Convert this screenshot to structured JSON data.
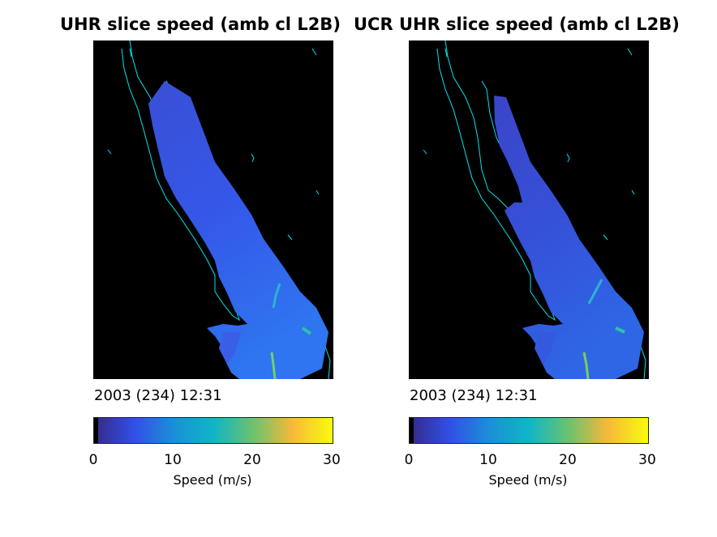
{
  "chart_data": [
    {
      "type": "heatmap",
      "title": "UHR slice speed (amb cl L2B)",
      "timestamp": "2003 (234) 12:31",
      "colorbar": {
        "label": "Speed (m/s)",
        "range": [
          0,
          30
        ],
        "ticks": [
          "0",
          "10",
          "20",
          "30"
        ],
        "colormap": "parula"
      },
      "coastline_color": "#00e5ee",
      "background_color": "#000000"
    },
    {
      "type": "heatmap",
      "title": "UCR UHR slice speed (amb cl L2B)",
      "timestamp": "2003 (234) 12:31",
      "colorbar": {
        "label": "Speed (m/s)",
        "range": [
          0,
          30
        ],
        "ticks": [
          "0",
          "10",
          "20",
          "30"
        ],
        "colormap": "parula"
      },
      "coastline_color": "#00e5ee",
      "background_color": "#000000"
    }
  ]
}
